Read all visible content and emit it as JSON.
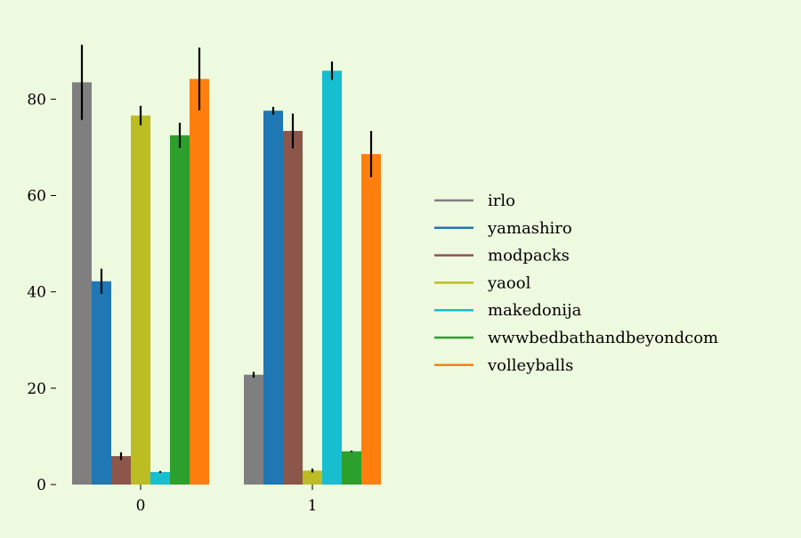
{
  "chart_data": {
    "type": "bar",
    "categories": [
      "0",
      "1"
    ],
    "ylim": [
      0,
      93
    ],
    "yticks": [
      0,
      20,
      40,
      60,
      80
    ],
    "ytick_labels": [
      "0",
      "20",
      "40",
      "60",
      "80"
    ],
    "grid": false,
    "legend_position": "right",
    "series": [
      {
        "name": "irlo",
        "color": "#7f7f7f",
        "values": [
          83.5,
          22.8
        ],
        "errors": [
          7.8,
          0.6
        ]
      },
      {
        "name": "yamashiro",
        "color": "#1f77b4",
        "values": [
          42.2,
          77.6
        ],
        "errors": [
          2.6,
          0.8
        ]
      },
      {
        "name": "modpacks",
        "color": "#8c564b",
        "values": [
          5.9,
          73.4
        ],
        "errors": [
          0.8,
          3.6
        ]
      },
      {
        "name": "yaool",
        "color": "#bcbd22",
        "values": [
          76.6,
          2.9
        ],
        "errors": [
          2.0,
          0.4
        ]
      },
      {
        "name": "makedonija",
        "color": "#17becf",
        "values": [
          2.6,
          85.9
        ],
        "errors": [
          0.2,
          1.9
        ]
      },
      {
        "name": "wwwbedbathandbeyondcom",
        "color": "#2ca02c",
        "values": [
          72.5,
          6.9
        ],
        "errors": [
          2.6,
          0.15
        ]
      },
      {
        "name": "volleyballs",
        "color": "#ff7f0e",
        "values": [
          84.2,
          68.6
        ],
        "errors": [
          6.5,
          4.8
        ]
      }
    ]
  }
}
